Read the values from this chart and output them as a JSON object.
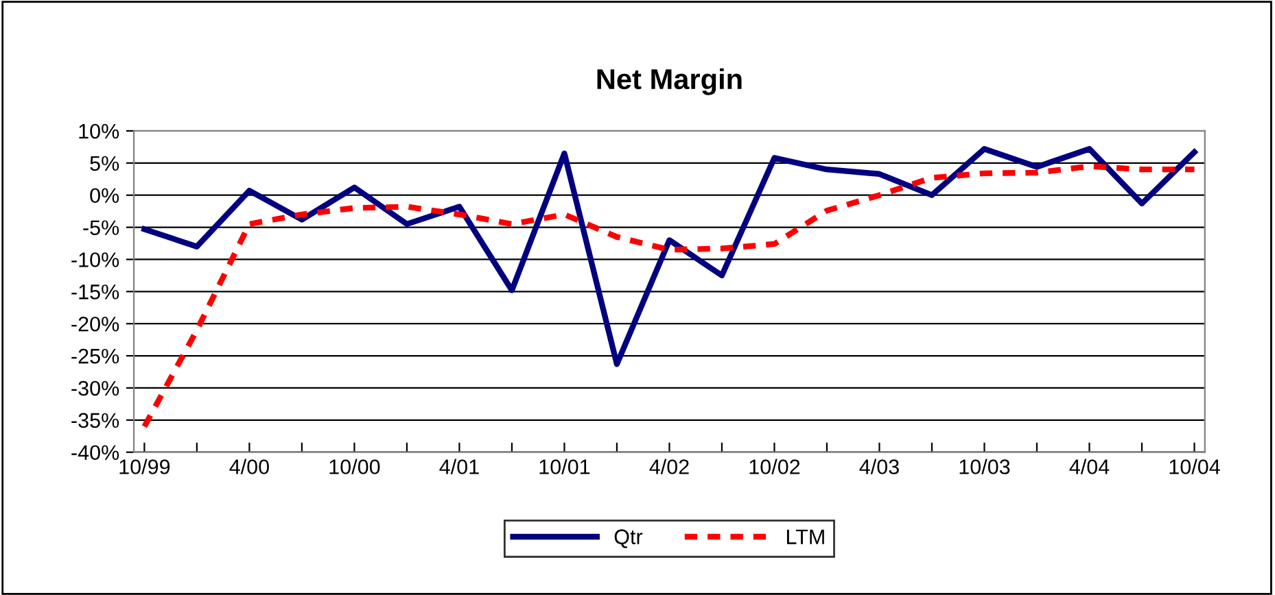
{
  "chart_data": {
    "type": "line",
    "title": "Net Margin",
    "categories": [
      "10/99",
      null,
      "4/00",
      null,
      "10/00",
      null,
      "4/01",
      null,
      "10/01",
      null,
      "4/02",
      null,
      "10/02",
      null,
      "4/03",
      null,
      "10/03",
      null,
      "4/04",
      null,
      "10/04"
    ],
    "series": [
      {
        "name": "Qtr",
        "color": "#000080",
        "line_style": "solid",
        "values": [
          -5.3,
          -8,
          0.7,
          -3.8,
          1.2,
          -4.5,
          -1.8,
          -14.8,
          6.5,
          -26.3,
          -7,
          -12.5,
          5.8,
          4,
          3.3,
          0,
          7.2,
          4.4,
          7.2,
          -1.3,
          6.7
        ]
      },
      {
        "name": "LTM",
        "color": "#ff0000",
        "line_style": "dashed",
        "values": [
          -36,
          -21,
          -4.5,
          -3,
          -2,
          -1.8,
          -3,
          -4.5,
          -3,
          -6.5,
          -8.5,
          -8.3,
          -7.6,
          -2.4,
          0,
          2.7,
          3.4,
          3.5,
          4.5,
          4,
          4
        ]
      }
    ],
    "ylim": [
      -40,
      10
    ],
    "yticks": [
      {
        "value": -40,
        "label": "-40%"
      },
      {
        "value": -35,
        "label": "-35%"
      },
      {
        "value": -30,
        "label": "-30%"
      },
      {
        "value": -25,
        "label": "-25%"
      },
      {
        "value": -20,
        "label": "-20%"
      },
      {
        "value": -15,
        "label": "-15%"
      },
      {
        "value": -10,
        "label": "-10%"
      },
      {
        "value": -5,
        "label": "-5%"
      },
      {
        "value": 0,
        "label": "0%"
      },
      {
        "value": 5,
        "label": "5%"
      },
      {
        "value": 10,
        "label": "10%"
      }
    ],
    "grid": "y",
    "legend": "bottom",
    "marker": "none"
  }
}
